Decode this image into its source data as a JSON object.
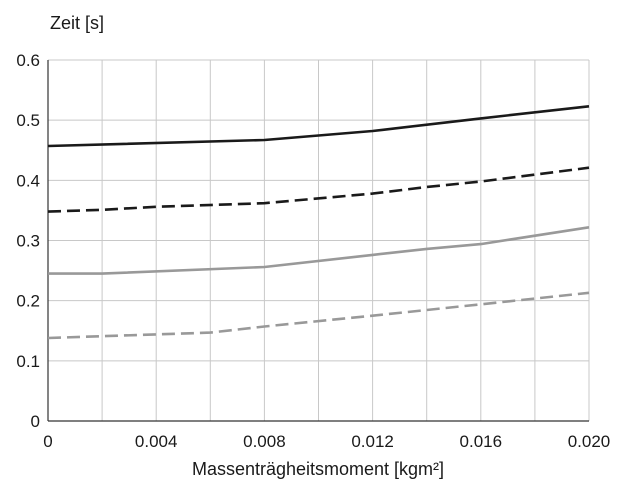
{
  "chart_data": {
    "type": "line",
    "title": "",
    "xlabel": "Massenträgheitsmoment [kgm²]",
    "ylabel": "Zeit [s]",
    "xlim": [
      0,
      0.02
    ],
    "ylim": [
      0,
      0.6
    ],
    "xticks": [
      "0",
      "0.004",
      "0.008",
      "0.012",
      "0.016",
      "0.020"
    ],
    "yticks": [
      "0",
      "0.1",
      "0.2",
      "0.3",
      "0.4",
      "0.5",
      "0.6"
    ],
    "grid": true,
    "legend": "none",
    "series": [
      {
        "color": "#1a1a1a",
        "dash": "solid",
        "x": [
          0,
          0.008,
          0.012,
          0.016,
          0.02
        ],
        "y": [
          0.457,
          0.467,
          0.482,
          0.503,
          0.523
        ]
      },
      {
        "color": "#1a1a1a",
        "dash": "dashed",
        "x": [
          0,
          0.002,
          0.004,
          0.008,
          0.012,
          0.014,
          0.016,
          0.02
        ],
        "y": [
          0.348,
          0.351,
          0.356,
          0.362,
          0.378,
          0.389,
          0.398,
          0.421
        ]
      },
      {
        "color": "#999999",
        "dash": "solid",
        "x": [
          0,
          0.002,
          0.008,
          0.012,
          0.014,
          0.016,
          0.02
        ],
        "y": [
          0.245,
          0.245,
          0.256,
          0.276,
          0.286,
          0.294,
          0.322
        ]
      },
      {
        "color": "#999999",
        "dash": "dashed",
        "x": [
          0,
          0.002,
          0.006,
          0.008,
          0.012,
          0.016,
          0.02
        ],
        "y": [
          0.138,
          0.141,
          0.147,
          0.157,
          0.175,
          0.194,
          0.213
        ]
      }
    ]
  }
}
